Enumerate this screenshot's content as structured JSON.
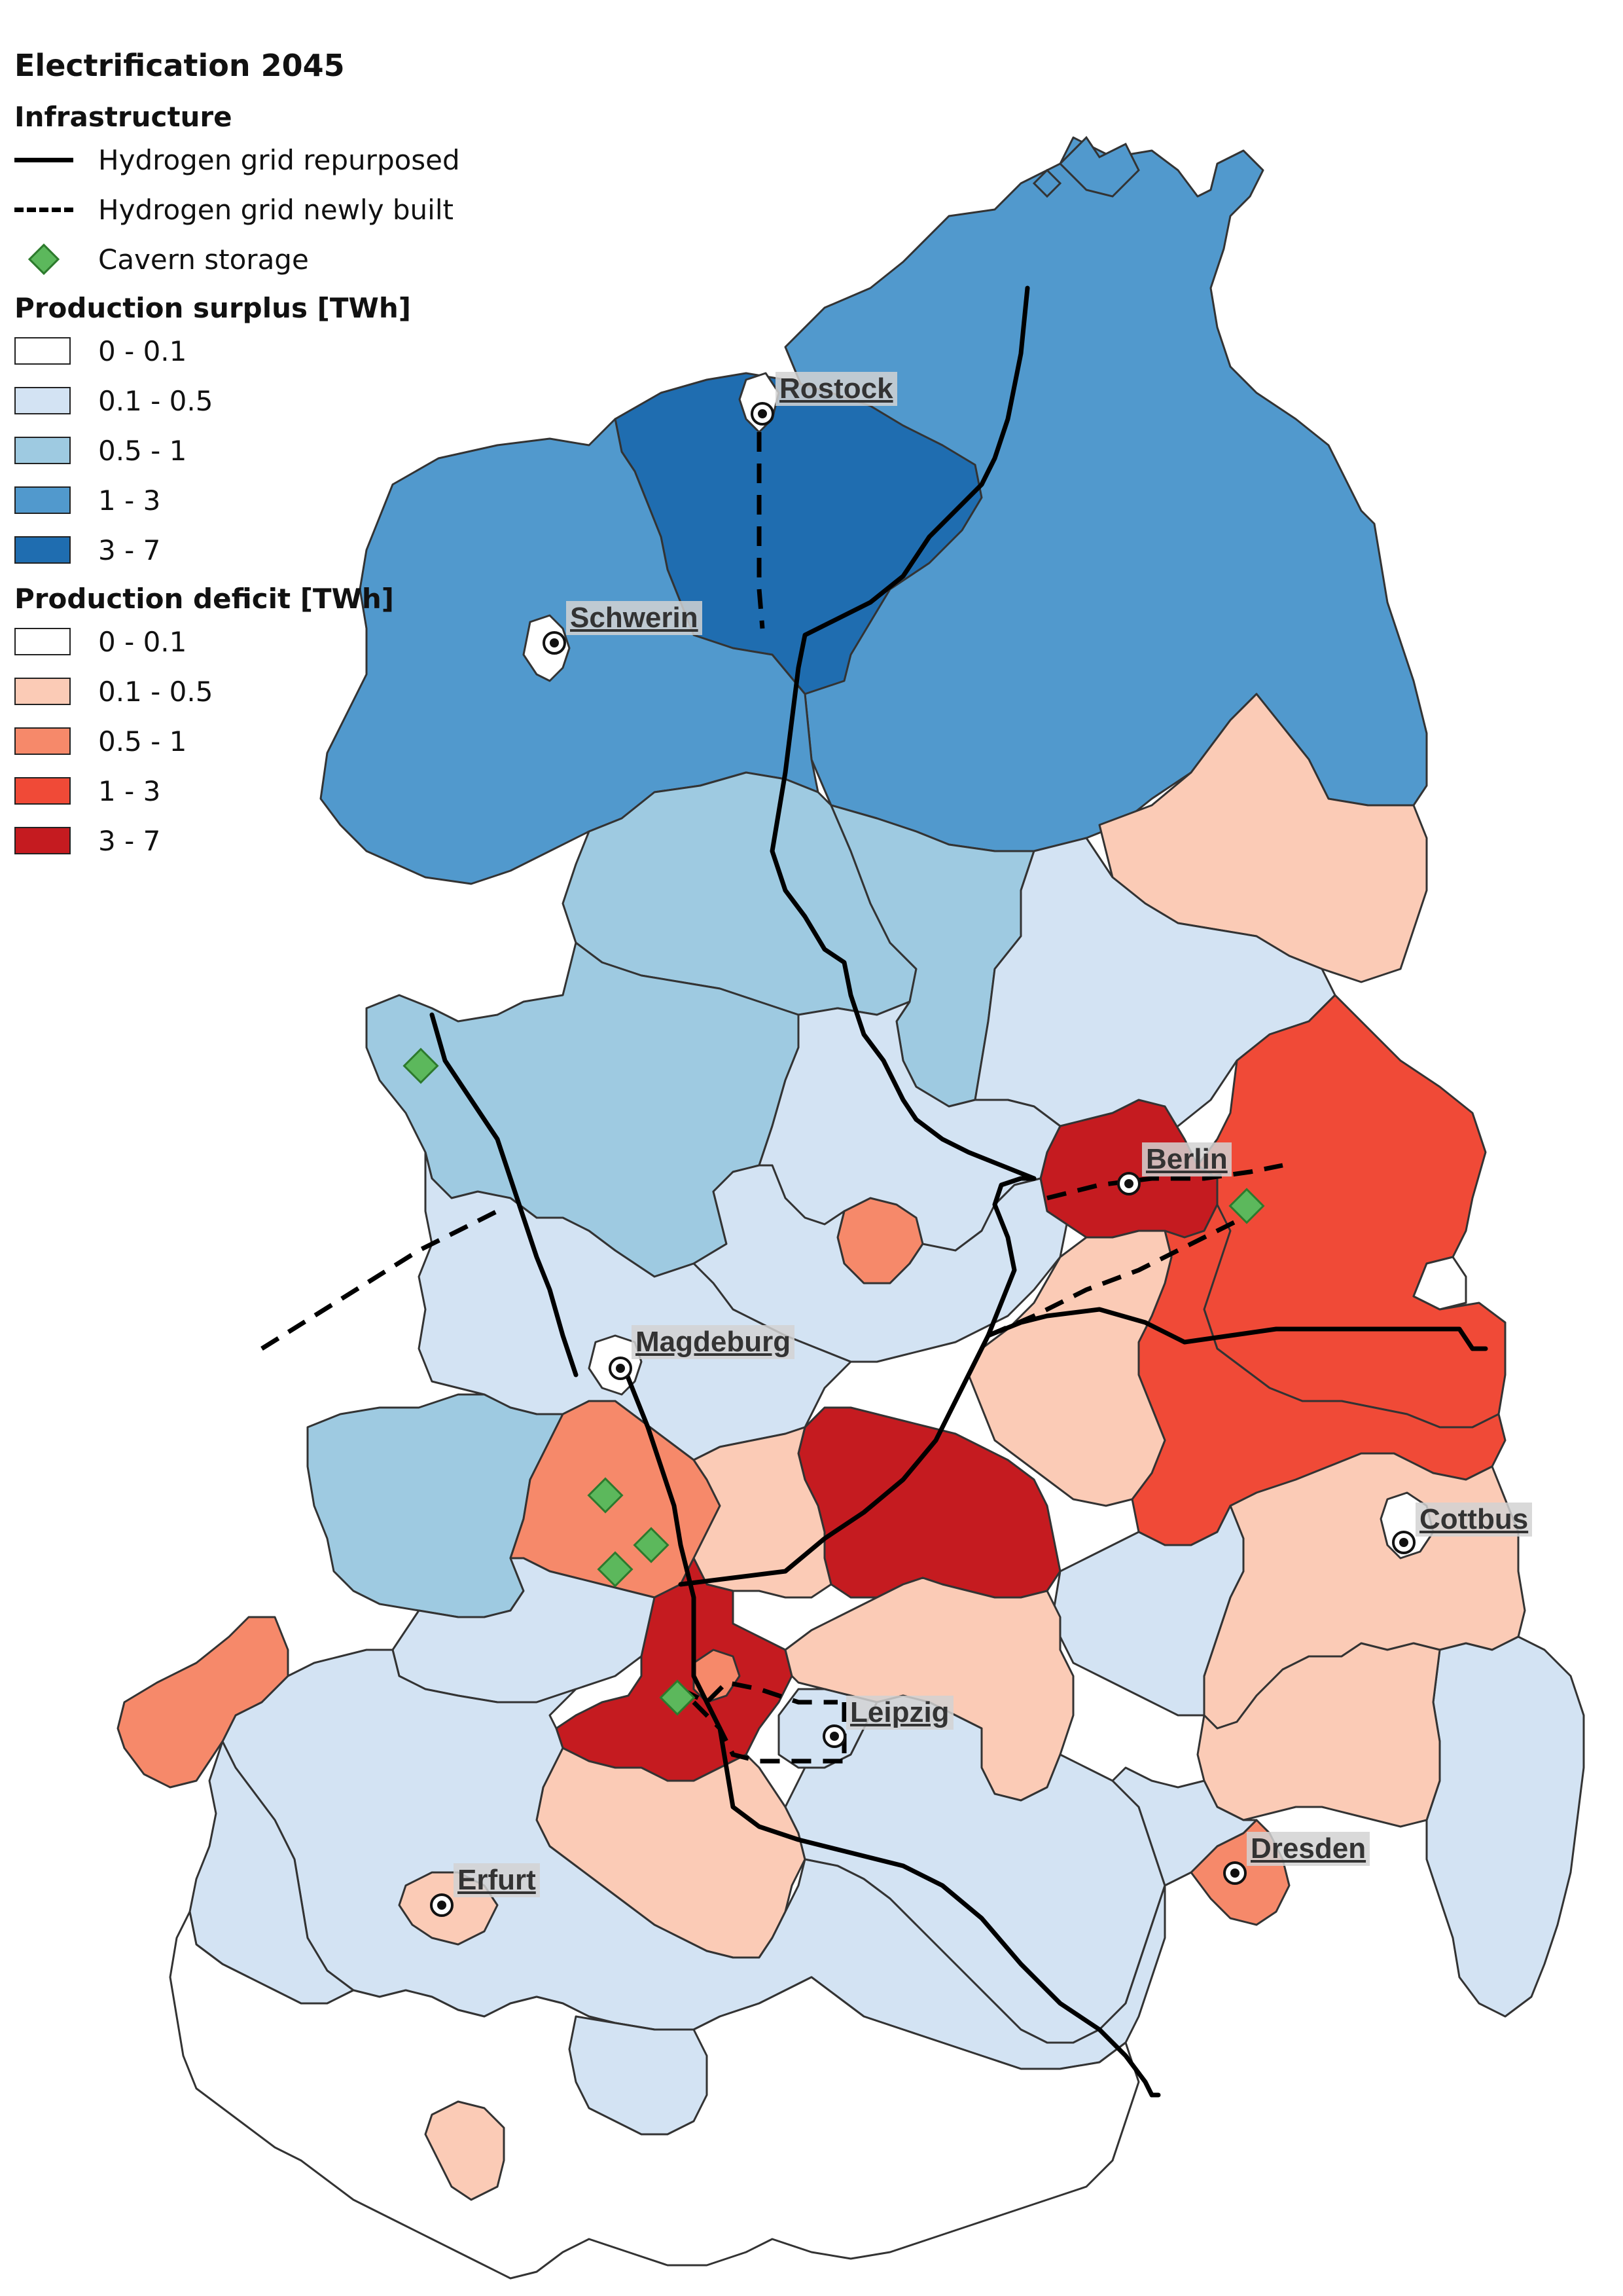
{
  "title": "Electrification 2045",
  "legend": {
    "infrastructure_title": "Infrastructure",
    "infrastructure": [
      {
        "label": "Hydrogen grid repurposed",
        "symbol": "solid-line"
      },
      {
        "label": "Hydrogen grid newly built",
        "symbol": "dashed-line"
      },
      {
        "label": "Cavern storage",
        "symbol": "green-diamond"
      }
    ],
    "surplus_title": "Production surplus [TWh]",
    "surplus": [
      {
        "label": "0 - 0.1",
        "color": "#ffffff"
      },
      {
        "label": "0.1 - 0.5",
        "color": "#d3e3f3"
      },
      {
        "label": "0.5 - 1",
        "color": "#9ecae1"
      },
      {
        "label": "1 - 3",
        "color": "#5199cd"
      },
      {
        "label": "3 - 7",
        "color": "#1f6db0"
      }
    ],
    "deficit_title": "Production deficit [TWh]",
    "deficit": [
      {
        "label": "0 - 0.1",
        "color": "#ffffff"
      },
      {
        "label": "0.1 - 0.5",
        "color": "#fbcbb6"
      },
      {
        "label": "0.5 - 1",
        "color": "#f6896a"
      },
      {
        "label": "1 - 3",
        "color": "#f04a37"
      },
      {
        "label": "3 - 7",
        "color": "#c51b20"
      }
    ]
  },
  "cities": [
    "Rostock",
    "Schwerin",
    "Berlin",
    "Magdeburg",
    "Cottbus",
    "Leipzig",
    "Dresden",
    "Erfurt"
  ],
  "colors": {
    "outline": "#1a1a1a",
    "cavern_fill": "#5cb85c",
    "cavern_stroke": "#2d7a2d",
    "pipeline": "#000000"
  }
}
